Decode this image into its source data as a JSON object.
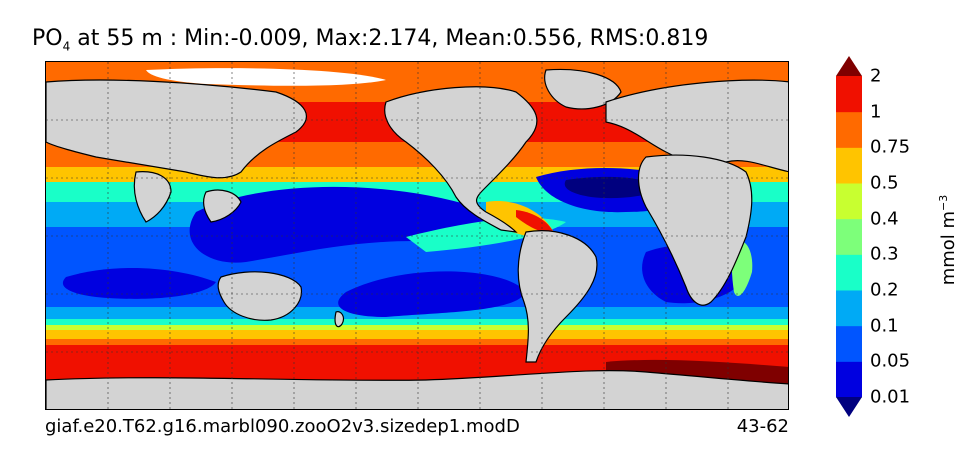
{
  "title": {
    "variable": "PO",
    "subscript": "4",
    "rest": " at 55 m : Min:-0.009, Max:2.174, Mean:0.556, RMS:0.819"
  },
  "caption": {
    "case_name": "giaf.e20.T62.g16.marbl090.zooO2v3.sizedep1.modD",
    "years": "43-62"
  },
  "colorbar": {
    "units_base": "mmol m",
    "units_exp": "−3",
    "levels": [
      "0.01",
      "0.05",
      "0.1",
      "0.2",
      "0.3",
      "0.4",
      "0.5",
      "0.75",
      "1",
      "2"
    ],
    "colors": [
      "#00007f",
      "#0000e0",
      "#0055ff",
      "#00aaf5",
      "#19ffc8",
      "#7dff7a",
      "#c8ff30",
      "#ffc400",
      "#ff6a00",
      "#f01000",
      "#7f0000"
    ],
    "extend": "both"
  },
  "map": {
    "land_color": "#d3d3d3",
    "ice_color": "#ffffff",
    "gridlines": true,
    "projection": "cylindrical"
  }
}
